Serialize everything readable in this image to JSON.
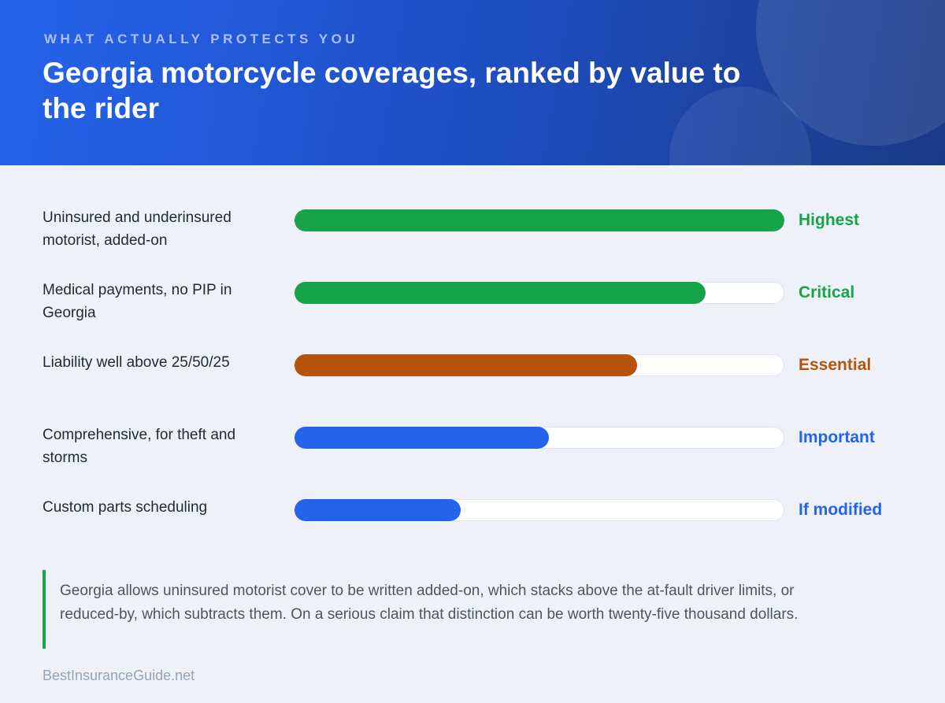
{
  "header": {
    "eyebrow": "WHAT ACTUALLY PROTECTS YOU",
    "title": "Georgia motorcycle coverages, ranked by value to the rider"
  },
  "chart_data": {
    "type": "bar",
    "orientation": "horizontal",
    "title": "Georgia motorcycle coverages, ranked by value to the rider",
    "categories": [
      "Uninsured and underinsured motorist, added-on",
      "Medical payments, no PIP in Georgia",
      "Liability well above 25/50/25",
      "Comprehensive, for theft and storms",
      "Custom parts scheduling"
    ],
    "values": [
      100,
      84,
      70,
      52,
      34
    ],
    "value_labels": [
      "Highest",
      "Critical",
      "Essential",
      "Important",
      "If modified"
    ],
    "colors": [
      "#16a34a",
      "#16a34a",
      "#b45309",
      "#2563eb",
      "#2563eb"
    ],
    "xlim": [
      0,
      100
    ],
    "grid": false,
    "legend": "none"
  },
  "callout": {
    "text": "Georgia allows uninsured motorist cover to be written added-on, which stacks above the at-fault driver limits, or reduced-by, which subtracts them. On a serious claim that distinction can be worth twenty-five thousand dollars.",
    "accent_color": "#16a34a"
  },
  "footer": {
    "brand": "BestInsuranceGuide.net"
  }
}
